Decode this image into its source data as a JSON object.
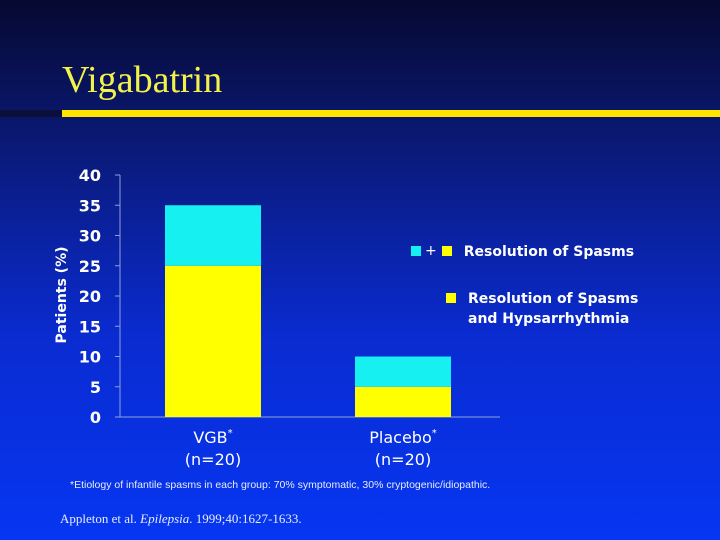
{
  "slide": {
    "title": "Vigabatrin",
    "footnote": "*Etiology of infantile spasms in each group: 70% symptomatic, 30% cryptogenic/idiopathic.",
    "citation_authors": "Appleton et al. ",
    "citation_journal": "Epilepsia",
    "citation_rest": ". 1999;40:1627-1633."
  },
  "colors": {
    "background_top": "#060930",
    "background_bottom": "#0636f2",
    "title": "#f2f24a",
    "title_rule": "#ffe600",
    "spasms_and_hypsarrhythmia": "#ffff00",
    "spasms_only": "#16f0f0",
    "text": "#ffffff"
  },
  "legend": {
    "item1": "Resolution of Spasms",
    "item1_plus": "+",
    "item2_line1": "Resolution of Spasms",
    "item2_line2": "and Hypsarrhythmia"
  },
  "chart_data": {
    "type": "bar",
    "stacked": true,
    "ylabel": "Patients (%)",
    "ylim": [
      0,
      40
    ],
    "yticks": [
      0,
      5,
      10,
      15,
      20,
      25,
      30,
      35,
      40
    ],
    "categories": [
      "VGB",
      "Placebo"
    ],
    "category_labels": [
      {
        "name": "VGB",
        "sup": "*",
        "n": "(n=20)"
      },
      {
        "name": "Placebo",
        "sup": "*",
        "n": "(n=20)"
      }
    ],
    "series": [
      {
        "name": "Resolution of Spasms and Hypsarrhythmia",
        "color": "#ffff00",
        "values": [
          25,
          5
        ]
      },
      {
        "name": "Resolution of Spasms",
        "color": "#16f0f0",
        "values": [
          10,
          5
        ]
      }
    ],
    "totals": [
      35,
      10
    ],
    "legend_position": "right",
    "grid": false
  }
}
